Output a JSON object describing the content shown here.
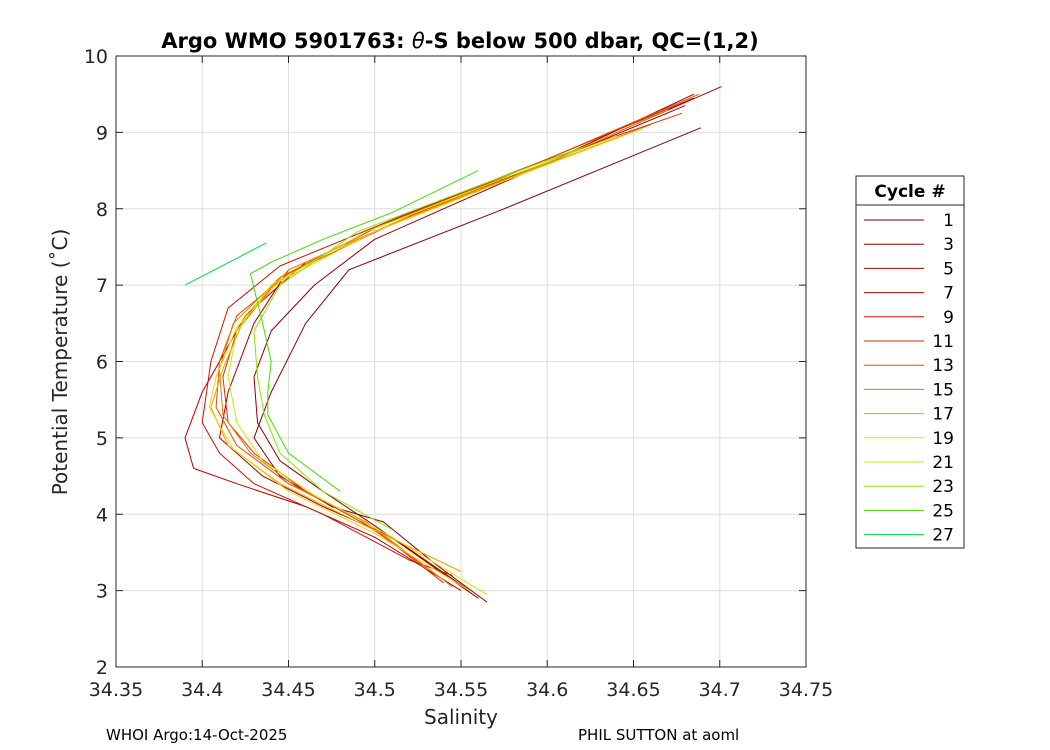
{
  "chart_data": {
    "type": "line",
    "title_prefix": "Argo WMO 5901763: ",
    "title_theta": "θ",
    "title_suffix": "-S below 500 dbar,  QC=(1,2)",
    "xlabel": "Salinity",
    "ylabel": "Potential Temperature (˚C)",
    "xlim": [
      34.35,
      34.75
    ],
    "ylim": [
      2,
      10
    ],
    "xticks": [
      "34.35",
      "34.4",
      "34.45",
      "34.5",
      "34.55",
      "34.6",
      "34.65",
      "34.7",
      "34.75"
    ],
    "yticks": [
      "2",
      "3",
      "4",
      "5",
      "6",
      "7",
      "8",
      "9",
      "10"
    ],
    "grid": true,
    "legend_title": "Cycle #",
    "legend_position": "outside-right",
    "series": [
      {
        "name": "1",
        "color": "#800000",
        "points": [
          [
            34.689,
            9.06
          ],
          [
            34.575,
            8.0
          ],
          [
            34.485,
            7.2
          ],
          [
            34.46,
            6.5
          ],
          [
            34.44,
            5.6
          ],
          [
            34.43,
            5.0
          ],
          [
            34.445,
            4.5
          ],
          [
            34.475,
            4.1
          ],
          [
            34.505,
            3.9
          ],
          [
            34.535,
            3.35
          ],
          [
            34.565,
            2.85
          ]
        ]
      },
      {
        "name": "3",
        "color": "#8c0000",
        "points": [
          [
            34.685,
            9.5
          ],
          [
            34.6,
            8.6
          ],
          [
            34.5,
            7.6
          ],
          [
            34.465,
            7.0
          ],
          [
            34.44,
            6.4
          ],
          [
            34.43,
            5.8
          ],
          [
            34.432,
            5.2
          ],
          [
            34.445,
            4.7
          ],
          [
            34.47,
            4.3
          ],
          [
            34.5,
            3.85
          ],
          [
            34.56,
            2.9
          ]
        ]
      },
      {
        "name": "5",
        "color": "#a00000",
        "points": [
          [
            34.68,
            9.35
          ],
          [
            34.595,
            8.55
          ],
          [
            34.51,
            7.8
          ],
          [
            34.45,
            7.2
          ],
          [
            34.43,
            6.5
          ],
          [
            34.415,
            5.6
          ],
          [
            34.41,
            5.0
          ],
          [
            34.435,
            4.5
          ],
          [
            34.47,
            4.1
          ],
          [
            34.51,
            3.7
          ],
          [
            34.555,
            3.0
          ]
        ]
      },
      {
        "name": "7",
        "color": "#b40000",
        "points": [
          [
            34.701,
            9.6
          ],
          [
            34.61,
            8.7
          ],
          [
            34.52,
            7.9
          ],
          [
            34.46,
            7.3
          ],
          [
            34.425,
            6.6
          ],
          [
            34.4,
            5.6
          ],
          [
            34.39,
            5.0
          ],
          [
            34.395,
            4.6
          ],
          [
            34.42,
            4.4
          ],
          [
            34.46,
            4.1
          ],
          [
            34.5,
            3.7
          ],
          [
            34.55,
            3.0
          ]
        ]
      },
      {
        "name": "9",
        "color": "#c81400",
        "points": [
          [
            34.685,
            9.45
          ],
          [
            34.6,
            8.65
          ],
          [
            34.515,
            7.9
          ],
          [
            34.445,
            7.25
          ],
          [
            34.415,
            6.7
          ],
          [
            34.405,
            6.0
          ],
          [
            34.4,
            5.2
          ],
          [
            34.41,
            4.8
          ],
          [
            34.43,
            4.4
          ],
          [
            34.47,
            4.0
          ],
          [
            34.52,
            3.4
          ],
          [
            34.545,
            3.2
          ]
        ]
      },
      {
        "name": "11",
        "color": "#d23200",
        "points": [
          [
            34.678,
            9.25
          ],
          [
            34.595,
            8.6
          ],
          [
            34.505,
            7.8
          ],
          [
            34.445,
            7.1
          ],
          [
            34.42,
            6.4
          ],
          [
            34.412,
            5.8
          ],
          [
            34.415,
            5.2
          ],
          [
            34.43,
            4.8
          ],
          [
            34.46,
            4.3
          ],
          [
            34.5,
            3.8
          ],
          [
            34.54,
            3.1
          ]
        ]
      },
      {
        "name": "13",
        "color": "#dc5000",
        "points": [
          [
            34.688,
            9.5
          ],
          [
            34.605,
            8.7
          ],
          [
            34.515,
            7.85
          ],
          [
            34.45,
            7.15
          ],
          [
            34.42,
            6.6
          ],
          [
            34.41,
            6.0
          ],
          [
            34.408,
            5.4
          ],
          [
            34.42,
            4.9
          ],
          [
            34.45,
            4.4
          ],
          [
            34.49,
            3.95
          ],
          [
            34.53,
            3.3
          ]
        ]
      },
      {
        "name": "15",
        "color": "#e67800",
        "points": [
          [
            34.66,
            9.1
          ],
          [
            34.59,
            8.5
          ],
          [
            34.5,
            7.75
          ],
          [
            34.445,
            7.1
          ],
          [
            34.418,
            6.5
          ],
          [
            34.41,
            5.9
          ],
          [
            34.412,
            5.3
          ],
          [
            34.428,
            4.8
          ],
          [
            34.455,
            4.35
          ],
          [
            34.495,
            3.9
          ],
          [
            34.545,
            3.05
          ]
        ]
      },
      {
        "name": "17",
        "color": "#f0a000",
        "points": [
          [
            34.67,
            9.3
          ],
          [
            34.6,
            8.6
          ],
          [
            34.51,
            7.8
          ],
          [
            34.45,
            7.2
          ],
          [
            34.425,
            6.6
          ],
          [
            34.412,
            5.9
          ],
          [
            34.405,
            5.4
          ],
          [
            34.415,
            4.9
          ],
          [
            34.445,
            4.4
          ],
          [
            34.49,
            3.9
          ],
          [
            34.55,
            3.25
          ]
        ]
      },
      {
        "name": "19",
        "color": "#fad200",
        "points": [
          [
            34.655,
            9.05
          ],
          [
            34.585,
            8.45
          ],
          [
            34.5,
            7.7
          ],
          [
            34.445,
            7.05
          ],
          [
            34.42,
            6.45
          ],
          [
            34.408,
            5.8
          ],
          [
            34.404,
            5.4
          ],
          [
            34.418,
            4.85
          ],
          [
            34.45,
            4.3
          ],
          [
            34.5,
            3.75
          ],
          [
            34.555,
            3.0
          ]
        ]
      },
      {
        "name": "21",
        "color": "#d2e600",
        "points": [
          [
            34.64,
            8.95
          ],
          [
            34.575,
            8.4
          ],
          [
            34.495,
            7.7
          ],
          [
            34.44,
            7.0
          ],
          [
            34.42,
            6.4
          ],
          [
            34.415,
            5.8
          ],
          [
            34.42,
            5.2
          ],
          [
            34.435,
            4.7
          ],
          [
            34.465,
            4.25
          ],
          [
            34.51,
            3.7
          ],
          [
            34.565,
            2.95
          ]
        ]
      },
      {
        "name": "23",
        "color": "#8ce600",
        "points": [
          [
            34.62,
            8.8
          ],
          [
            34.56,
            8.3
          ],
          [
            34.49,
            7.7
          ],
          [
            34.445,
            7.0
          ],
          [
            34.43,
            6.4
          ],
          [
            34.432,
            5.8
          ],
          [
            34.436,
            5.3
          ],
          [
            34.445,
            4.8
          ],
          [
            34.47,
            4.3
          ],
          [
            34.51,
            3.8
          ]
        ]
      },
      {
        "name": "25",
        "color": "#46dc00",
        "points": [
          [
            34.56,
            8.5
          ],
          [
            34.51,
            7.95
          ],
          [
            34.47,
            7.6
          ],
          [
            34.44,
            7.3
          ],
          [
            34.428,
            7.15
          ],
          [
            34.435,
            6.5
          ],
          [
            34.44,
            6.0
          ],
          [
            34.438,
            5.6
          ],
          [
            34.438,
            5.3
          ],
          [
            34.45,
            4.8
          ],
          [
            34.48,
            4.3
          ]
        ]
      },
      {
        "name": "27",
        "color": "#00dc46",
        "points": [
          [
            34.39,
            7.0
          ],
          [
            34.437,
            7.55
          ]
        ]
      }
    ],
    "footer_left": "WHOI Argo:14-Oct-2025",
    "footer_right": "PHIL SUTTON at aoml"
  }
}
